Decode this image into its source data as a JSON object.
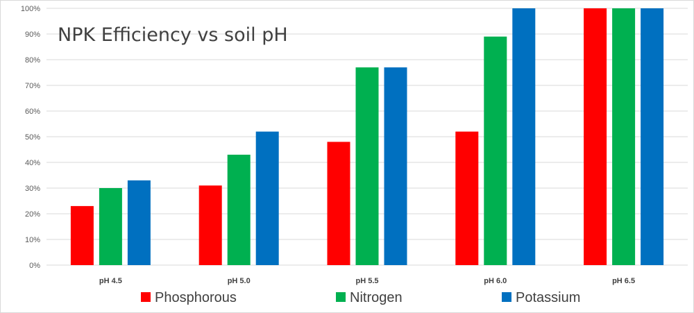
{
  "chart_data": {
    "type": "bar",
    "title": "NPK Efficiency vs soil pH",
    "categories": [
      "pH 4.5",
      "pH 5.0",
      "pH 5.5",
      "pH 6.0",
      "pH 6.5"
    ],
    "series": [
      {
        "name": "Phosphorous",
        "color": "#ff0000",
        "values": [
          23,
          31,
          48,
          52,
          100
        ]
      },
      {
        "name": "Nitrogen",
        "color": "#00b050",
        "values": [
          30,
          43,
          77,
          89,
          100
        ]
      },
      {
        "name": "Potassium",
        "color": "#0070c0",
        "values": [
          33,
          52,
          77,
          100,
          100
        ]
      }
    ],
    "yticks": [
      "0%",
      "10%",
      "20%",
      "30%",
      "40%",
      "50%",
      "60%",
      "70%",
      "80%",
      "90%",
      "100%"
    ],
    "ylim": [
      0,
      100
    ],
    "grid": true,
    "legend": "bottom"
  }
}
